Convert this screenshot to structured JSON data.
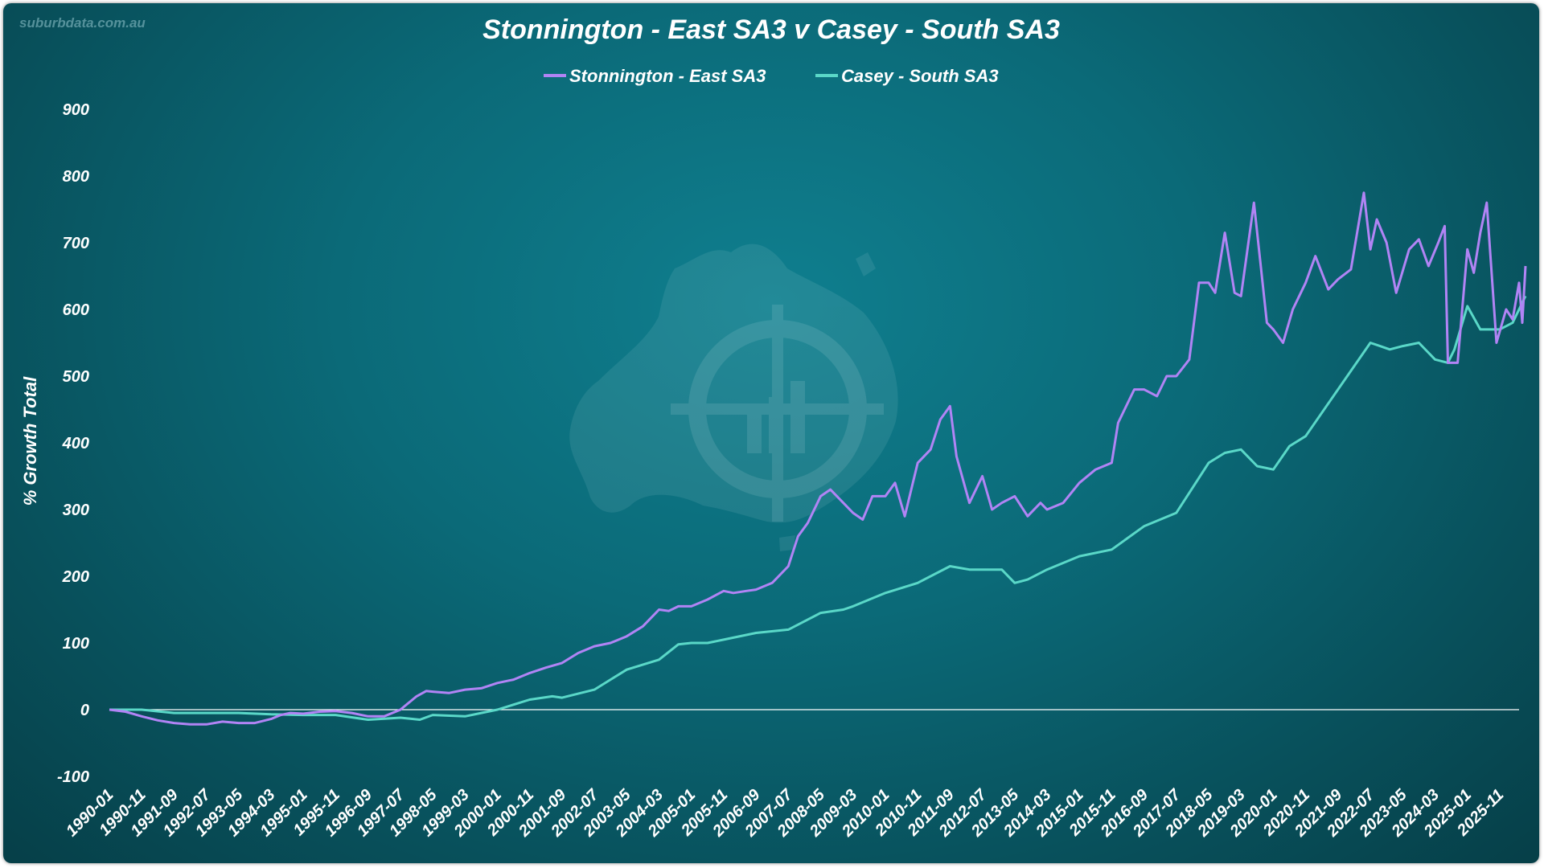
{
  "watermark": "suburbdata.com.au",
  "chart_data": {
    "type": "line",
    "title": "Stonnington - East SA3 v Casey - South SA3",
    "ylabel": "% Growth Total",
    "xlabel": "",
    "ylim": [
      -100,
      900
    ],
    "yticks": [
      -100,
      0,
      100,
      200,
      300,
      400,
      500,
      600,
      700,
      800,
      900
    ],
    "grid": false,
    "legend_position": "top-center",
    "x_range": [
      "1990-01",
      "2026-05"
    ],
    "x_ticks": [
      "1990-01",
      "1990-11",
      "1991-09",
      "1992-07",
      "1993-05",
      "1994-03",
      "1995-01",
      "1995-11",
      "1996-09",
      "1997-07",
      "1998-05",
      "1999-03",
      "2000-01",
      "2000-11",
      "2001-09",
      "2002-07",
      "2003-05",
      "2004-03",
      "2005-01",
      "2005-11",
      "2006-09",
      "2007-07",
      "2008-05",
      "2009-03",
      "2010-01",
      "2010-11",
      "2011-09",
      "2012-07",
      "2013-05",
      "2014-03",
      "2015-01",
      "2015-11",
      "2016-09",
      "2017-07",
      "2018-05",
      "2019-03",
      "2020-01",
      "2020-11",
      "2021-09",
      "2022-07",
      "2023-05",
      "2024-03",
      "2025-01",
      "2025-11"
    ],
    "series": [
      {
        "name": "Stonnington - East SA3",
        "color": "#b184f5",
        "points": [
          [
            "1990-01",
            0
          ],
          [
            "1990-06",
            -3
          ],
          [
            "1990-11",
            -10
          ],
          [
            "1991-04",
            -16
          ],
          [
            "1991-09",
            -20
          ],
          [
            "1992-02",
            -22
          ],
          [
            "1992-07",
            -22
          ],
          [
            "1992-12",
            -18
          ],
          [
            "1993-05",
            -20
          ],
          [
            "1993-10",
            -20
          ],
          [
            "1994-03",
            -14
          ],
          [
            "1994-06",
            -8
          ],
          [
            "1994-09",
            -5
          ],
          [
            "1995-01",
            -6
          ],
          [
            "1995-06",
            -3
          ],
          [
            "1995-11",
            -2
          ],
          [
            "1996-04",
            -5
          ],
          [
            "1996-09",
            -10
          ],
          [
            "1997-02",
            -10
          ],
          [
            "1997-07",
            0
          ],
          [
            "1997-12",
            20
          ],
          [
            "1998-03",
            28
          ],
          [
            "1998-05",
            27
          ],
          [
            "1998-10",
            25
          ],
          [
            "1999-03",
            30
          ],
          [
            "1999-08",
            32
          ],
          [
            "2000-01",
            40
          ],
          [
            "2000-06",
            45
          ],
          [
            "2000-11",
            55
          ],
          [
            "2001-04",
            63
          ],
          [
            "2001-09",
            70
          ],
          [
            "2002-02",
            85
          ],
          [
            "2002-07",
            95
          ],
          [
            "2002-12",
            100
          ],
          [
            "2003-05",
            110
          ],
          [
            "2003-10",
            125
          ],
          [
            "2004-03",
            150
          ],
          [
            "2004-06",
            148
          ],
          [
            "2004-09",
            155
          ],
          [
            "2005-01",
            155
          ],
          [
            "2005-06",
            165
          ],
          [
            "2005-11",
            178
          ],
          [
            "2006-02",
            175
          ],
          [
            "2006-06",
            178
          ],
          [
            "2006-09",
            180
          ],
          [
            "2007-02",
            190
          ],
          [
            "2007-07",
            215
          ],
          [
            "2007-10",
            260
          ],
          [
            "2008-01",
            280
          ],
          [
            "2008-05",
            320
          ],
          [
            "2008-08",
            330
          ],
          [
            "2008-12",
            310
          ],
          [
            "2009-03",
            295
          ],
          [
            "2009-06",
            285
          ],
          [
            "2009-09",
            320
          ],
          [
            "2010-01",
            320
          ],
          [
            "2010-04",
            340
          ],
          [
            "2010-07",
            290
          ],
          [
            "2010-11",
            370
          ],
          [
            "2011-03",
            390
          ],
          [
            "2011-06",
            435
          ],
          [
            "2011-09",
            455
          ],
          [
            "2011-11",
            380
          ],
          [
            "2012-03",
            310
          ],
          [
            "2012-07",
            350
          ],
          [
            "2012-10",
            300
          ],
          [
            "2013-01",
            310
          ],
          [
            "2013-05",
            320
          ],
          [
            "2013-09",
            290
          ],
          [
            "2014-01",
            310
          ],
          [
            "2014-03",
            300
          ],
          [
            "2014-08",
            310
          ],
          [
            "2015-01",
            340
          ],
          [
            "2015-06",
            360
          ],
          [
            "2015-11",
            370
          ],
          [
            "2016-01",
            430
          ],
          [
            "2016-06",
            480
          ],
          [
            "2016-09",
            480
          ],
          [
            "2017-01",
            470
          ],
          [
            "2017-04",
            500
          ],
          [
            "2017-07",
            500
          ],
          [
            "2017-11",
            525
          ],
          [
            "2018-02",
            640
          ],
          [
            "2018-05",
            640
          ],
          [
            "2018-07",
            625
          ],
          [
            "2018-10",
            715
          ],
          [
            "2019-01",
            625
          ],
          [
            "2019-03",
            620
          ],
          [
            "2019-07",
            760
          ],
          [
            "2019-11",
            580
          ],
          [
            "2020-01",
            570
          ],
          [
            "2020-04",
            550
          ],
          [
            "2020-07",
            600
          ],
          [
            "2020-11",
            640
          ],
          [
            "2021-02",
            680
          ],
          [
            "2021-06",
            630
          ],
          [
            "2021-09",
            645
          ],
          [
            "2022-01",
            660
          ],
          [
            "2022-05",
            775
          ],
          [
            "2022-07",
            690
          ],
          [
            "2022-09",
            735
          ],
          [
            "2022-12",
            700
          ],
          [
            "2023-03",
            625
          ],
          [
            "2023-07",
            690
          ],
          [
            "2023-10",
            705
          ],
          [
            "2024-01",
            665
          ],
          [
            "2024-04",
            700
          ],
          [
            "2024-06",
            725
          ],
          [
            "2024-07",
            520
          ],
          [
            "2024-10",
            520
          ],
          [
            "2025-01",
            690
          ],
          [
            "2025-03",
            655
          ],
          [
            "2025-05",
            715
          ],
          [
            "2025-07",
            760
          ],
          [
            "2025-10",
            550
          ],
          [
            "2026-01",
            600
          ],
          [
            "2026-03",
            585
          ],
          [
            "2026-05",
            640
          ],
          [
            "2026-06",
            580
          ],
          [
            "2026-07",
            665
          ]
        ]
      },
      {
        "name": "Casey - South SA3",
        "color": "#5ad8c8",
        "points": [
          [
            "1990-01",
            0
          ],
          [
            "1990-11",
            0
          ],
          [
            "1991-09",
            -5
          ],
          [
            "1992-07",
            -5
          ],
          [
            "1993-05",
            -5
          ],
          [
            "1994-03",
            -7
          ],
          [
            "1995-01",
            -8
          ],
          [
            "1995-11",
            -8
          ],
          [
            "1996-09",
            -15
          ],
          [
            "1997-07",
            -12
          ],
          [
            "1998-01",
            -15
          ],
          [
            "1998-05",
            -8
          ],
          [
            "1999-03",
            -10
          ],
          [
            "2000-01",
            0
          ],
          [
            "2000-11",
            15
          ],
          [
            "2001-06",
            20
          ],
          [
            "2001-09",
            18
          ],
          [
            "2002-07",
            30
          ],
          [
            "2003-05",
            60
          ],
          [
            "2004-03",
            75
          ],
          [
            "2004-09",
            98
          ],
          [
            "2005-01",
            100
          ],
          [
            "2005-06",
            100
          ],
          [
            "2005-11",
            105
          ],
          [
            "2006-09",
            115
          ],
          [
            "2007-07",
            120
          ],
          [
            "2008-05",
            145
          ],
          [
            "2008-12",
            150
          ],
          [
            "2009-03",
            155
          ],
          [
            "2010-01",
            175
          ],
          [
            "2010-11",
            190
          ],
          [
            "2011-09",
            215
          ],
          [
            "2012-03",
            210
          ],
          [
            "2012-07",
            210
          ],
          [
            "2013-01",
            210
          ],
          [
            "2013-05",
            190
          ],
          [
            "2013-09",
            195
          ],
          [
            "2014-03",
            210
          ],
          [
            "2015-01",
            230
          ],
          [
            "2015-11",
            240
          ],
          [
            "2016-09",
            275
          ],
          [
            "2017-07",
            295
          ],
          [
            "2018-05",
            370
          ],
          [
            "2018-10",
            385
          ],
          [
            "2019-03",
            390
          ],
          [
            "2019-08",
            365
          ],
          [
            "2020-01",
            360
          ],
          [
            "2020-06",
            395
          ],
          [
            "2020-11",
            410
          ],
          [
            "2021-09",
            480
          ],
          [
            "2022-07",
            550
          ],
          [
            "2022-10",
            545
          ],
          [
            "2023-01",
            540
          ],
          [
            "2023-05",
            545
          ],
          [
            "2023-10",
            550
          ],
          [
            "2024-03",
            525
          ],
          [
            "2024-07",
            520
          ],
          [
            "2024-09",
            540
          ],
          [
            "2025-01",
            605
          ],
          [
            "2025-05",
            570
          ],
          [
            "2025-11",
            570
          ],
          [
            "2026-03",
            580
          ],
          [
            "2026-07",
            620
          ]
        ]
      }
    ]
  }
}
